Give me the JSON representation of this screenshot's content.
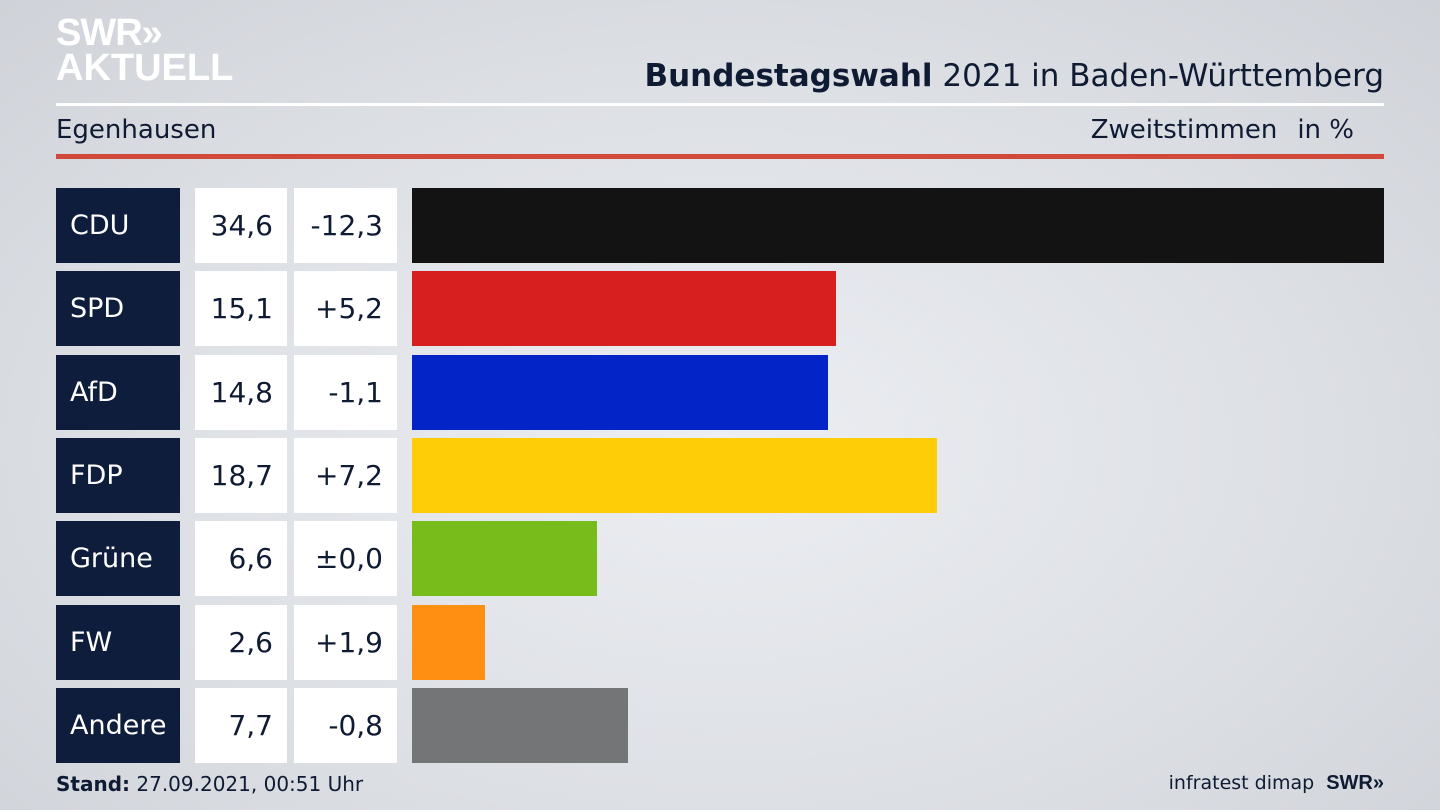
{
  "logo": {
    "line1": "SWR»",
    "line2": "AKTUELL"
  },
  "header": {
    "title_bold": "Bundestagswahl",
    "title_rest": " 2021 in Baden-Württemberg",
    "region": "Egenhausen",
    "measure": "Zweitstimmen",
    "unit": "in %"
  },
  "chart_data": {
    "type": "bar",
    "title": "Bundestagswahl 2021 in Baden-Württemberg – Egenhausen, Zweitstimmen in %",
    "categories": [
      "CDU",
      "SPD",
      "AfD",
      "FDP",
      "Grüne",
      "FW",
      "Andere"
    ],
    "values": [
      34.6,
      15.1,
      14.8,
      18.7,
      6.6,
      2.6,
      7.7
    ],
    "value_labels": [
      "34,6",
      "15,1",
      "14,8",
      "18,7",
      "6,6",
      "2,6",
      "7,7"
    ],
    "diff_labels": [
      "-12,3",
      "+5,2",
      "-1,1",
      "+7,2",
      "±0,0",
      "+1,9",
      "-0,8"
    ],
    "diffs": [
      -12.3,
      5.2,
      -1.1,
      7.2,
      0.0,
      1.9,
      -0.8
    ],
    "colors": [
      "#131313",
      "#d81f1f",
      "#0325c8",
      "#ffcc08",
      "#78bc1b",
      "#ff8f13",
      "#747577"
    ],
    "xlim": [
      0,
      34.6
    ]
  },
  "footer": {
    "stand_label": "Stand:",
    "stand_value": " 27.09.2021, 00:51 Uhr",
    "source": "infratest dimap",
    "source_logo": "SWR»"
  }
}
